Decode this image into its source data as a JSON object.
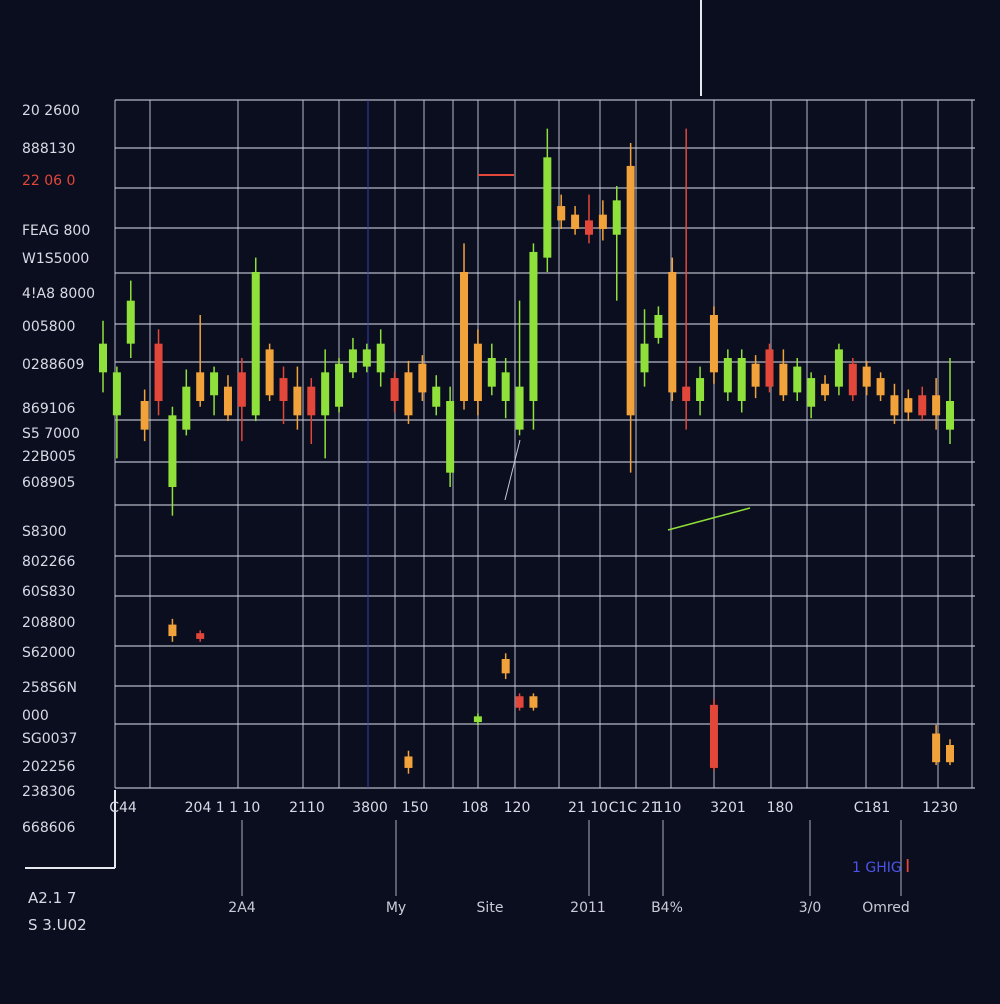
{
  "colors": {
    "background": "#0b0e1f",
    "grid": "#c8ccd8",
    "up": "#8fe03a",
    "down_orange": "#f2a23a",
    "down_red": "#e2473a",
    "accent_blue": "#4b54e6"
  },
  "corner_top": {
    "line1": "A2.1 7",
    "line2": "S 3.U02"
  },
  "badge": {
    "text": "1 GHIG",
    "mark": "I"
  },
  "chart_data": {
    "type": "candlestick",
    "grid": true,
    "y_tick_labels": [
      "20 2600",
      "888130",
      "22 06 0",
      "FEAG 800",
      "W1S5000",
      "4!A8 8000",
      "005800",
      "0288609",
      "869106",
      "S5 7000",
      "22B005",
      "608905",
      "S8300",
      "802266",
      "60S830",
      "208800",
      "S62000",
      "258S6N",
      "000",
      "SG0037",
      "202256",
      "238306",
      "668606"
    ],
    "highlighted_y_tick": "22 06 0",
    "x_tick_labels": [
      "C44",
      "204",
      "1 1 10",
      "2110",
      "3800",
      "150",
      "108",
      "120",
      "21 10",
      "C1C 21",
      "110",
      "3201",
      "180",
      "C181",
      "1230"
    ],
    "bottom_labels": [
      "2A4",
      "My",
      "Site",
      "2011",
      "B4%",
      "3/0",
      "Omred"
    ],
    "candles": [
      {
        "o": 4,
        "c": 5,
        "h": 5.8,
        "l": 3.3,
        "color": "up"
      },
      {
        "o": 4,
        "c": 2.5,
        "h": 4.2,
        "l": 1,
        "color": "up"
      },
      {
        "o": 5,
        "c": 6.5,
        "h": 7.2,
        "l": 4.5,
        "color": "up"
      },
      {
        "o": 3,
        "c": 2,
        "h": 3.4,
        "l": 1.6,
        "color": "orange"
      },
      {
        "o": 3,
        "c": 5,
        "h": 5.5,
        "l": 2.5,
        "color": "red"
      },
      {
        "o": 2.5,
        "c": 0,
        "h": 2.8,
        "l": -1,
        "color": "up"
      },
      {
        "o": 2,
        "c": 3.5,
        "h": 4.1,
        "l": 1.8,
        "color": "up"
      },
      {
        "o": 3,
        "c": 4,
        "h": 6,
        "l": 2.8,
        "color": "orange"
      },
      {
        "o": 3.2,
        "c": 4,
        "h": 4.2,
        "l": 2.5,
        "color": "up"
      },
      {
        "o": 2.5,
        "c": 3.5,
        "h": 3.9,
        "l": 2.3,
        "color": "orange"
      },
      {
        "o": 2.8,
        "c": 4,
        "h": 4.5,
        "l": 1.6,
        "color": "red"
      },
      {
        "o": 2.5,
        "c": 7.5,
        "h": 8,
        "l": 2.3,
        "color": "up"
      },
      {
        "o": 3.2,
        "c": 4.8,
        "h": 5,
        "l": 3,
        "color": "orange"
      },
      {
        "o": 3,
        "c": 3.8,
        "h": 4.2,
        "l": 2.2,
        "color": "red"
      },
      {
        "o": 3.5,
        "c": 2.5,
        "h": 4.2,
        "l": 2,
        "color": "orange"
      },
      {
        "o": 3.5,
        "c": 2.5,
        "h": 3.8,
        "l": 1.5,
        "color": "red"
      },
      {
        "o": 2.5,
        "c": 4,
        "h": 4.8,
        "l": 1,
        "color": "up"
      },
      {
        "o": 2.8,
        "c": 4.3,
        "h": 4.5,
        "l": 2.6,
        "color": "up"
      },
      {
        "o": 4,
        "c": 4.8,
        "h": 5.2,
        "l": 3.8,
        "color": "up"
      },
      {
        "o": 4.2,
        "c": 4.8,
        "h": 5,
        "l": 4,
        "color": "up"
      },
      {
        "o": 4,
        "c": 5,
        "h": 5.5,
        "l": 3.5,
        "color": "up"
      },
      {
        "o": 3.8,
        "c": 3,
        "h": 4,
        "l": 2.6,
        "color": "red"
      },
      {
        "o": 4,
        "c": 2.5,
        "h": 4.4,
        "l": 2.2,
        "color": "orange"
      },
      {
        "o": 3.3,
        "c": 4.3,
        "h": 4.6,
        "l": 3,
        "color": "orange"
      },
      {
        "o": 3.5,
        "c": 2.8,
        "h": 3.9,
        "l": 2.5,
        "color": "up"
      },
      {
        "o": 3,
        "c": 0.5,
        "h": 3.5,
        "l": 0,
        "color": "up"
      },
      {
        "o": 3,
        "c": 7.5,
        "h": 8.5,
        "l": 2.7,
        "color": "orange"
      },
      {
        "o": 3,
        "c": 5,
        "h": 5.5,
        "l": 2.5,
        "color": "orange"
      },
      {
        "o": 3.5,
        "c": 4.5,
        "h": 5,
        "l": 3.2,
        "color": "up"
      },
      {
        "o": 3,
        "c": 4,
        "h": 4.5,
        "l": 2.4,
        "color": "up"
      },
      {
        "o": 2,
        "c": 3.5,
        "h": 6.5,
        "l": 1.8,
        "color": "up"
      },
      {
        "o": 3,
        "c": 8.2,
        "h": 8.5,
        "l": 2,
        "color": "up"
      },
      {
        "o": 8,
        "c": 11.5,
        "h": 12.5,
        "l": 7.5,
        "color": "up"
      },
      {
        "o": 9.3,
        "c": 9.8,
        "h": 10.2,
        "l": 9,
        "color": "orange"
      },
      {
        "o": 9,
        "c": 9.5,
        "h": 9.8,
        "l": 8.8,
        "color": "orange"
      },
      {
        "o": 8.8,
        "c": 9.3,
        "h": 10.2,
        "l": 8.5,
        "color": "red"
      },
      {
        "o": 9.5,
        "c": 9,
        "h": 10,
        "l": 8.6,
        "color": "orange"
      },
      {
        "o": 8.8,
        "c": 10,
        "h": 10.5,
        "l": 6.5,
        "color": "up"
      },
      {
        "o": 11.2,
        "c": 2.5,
        "h": 12,
        "l": 0.5,
        "color": "orange"
      },
      {
        "o": 4,
        "c": 5,
        "h": 6.2,
        "l": 3.5,
        "color": "up"
      },
      {
        "o": 5.2,
        "c": 6,
        "h": 6.3,
        "l": 5,
        "color": "up"
      },
      {
        "o": 3.3,
        "c": 7.5,
        "h": 8,
        "l": 3,
        "color": "orange"
      },
      {
        "o": 3,
        "c": 3.5,
        "h": 12.5,
        "l": 2,
        "color": "red"
      },
      {
        "o": 3,
        "c": 3.8,
        "h": 4.2,
        "l": 2.5,
        "color": "up"
      },
      {
        "o": 4,
        "c": 6,
        "h": 6.3,
        "l": 3.6,
        "color": "orange"
      },
      {
        "o": 3.3,
        "c": 4.5,
        "h": 4.8,
        "l": 3,
        "color": "up"
      },
      {
        "o": 4.5,
        "c": 3,
        "h": 4.8,
        "l": 2.6,
        "color": "up"
      },
      {
        "o": 3.5,
        "c": 4.3,
        "h": 4.6,
        "l": 3.1,
        "color": "orange"
      },
      {
        "o": 3.5,
        "c": 4.8,
        "h": 5,
        "l": 3.3,
        "color": "red"
      },
      {
        "o": 4.3,
        "c": 3.2,
        "h": 4.8,
        "l": 3,
        "color": "orange"
      },
      {
        "o": 3.3,
        "c": 4.2,
        "h": 4.5,
        "l": 3,
        "color": "up"
      },
      {
        "o": 3.8,
        "c": 2.8,
        "h": 4,
        "l": 2.4,
        "color": "up"
      },
      {
        "o": 3.6,
        "c": 3.2,
        "h": 3.9,
        "l": 3,
        "color": "orange"
      },
      {
        "o": 3.5,
        "c": 4.8,
        "h": 5,
        "l": 3.2,
        "color": "up"
      },
      {
        "o": 3.2,
        "c": 4.3,
        "h": 4.5,
        "l": 3,
        "color": "red"
      },
      {
        "o": 4.2,
        "c": 3.5,
        "h": 4.4,
        "l": 3.2,
        "color": "orange"
      },
      {
        "o": 3.8,
        "c": 3.2,
        "h": 4,
        "l": 3,
        "color": "orange"
      },
      {
        "o": 3.2,
        "c": 2.5,
        "h": 3.6,
        "l": 2.2,
        "color": "orange"
      },
      {
        "o": 3.1,
        "c": 2.6,
        "h": 3.4,
        "l": 2.3,
        "color": "orange"
      },
      {
        "o": 3.2,
        "c": 2.5,
        "h": 3.5,
        "l": 2.3,
        "color": "red"
      },
      {
        "o": 3.2,
        "c": 2.5,
        "h": 3.8,
        "l": 2,
        "color": "orange"
      },
      {
        "o": 3,
        "c": 2,
        "h": 4.5,
        "l": 1.5,
        "color": "up"
      }
    ],
    "bottom_candles": [
      {
        "i": 5,
        "o": -5.2,
        "c": -4.8,
        "h": -4.6,
        "l": -5.4,
        "color": "orange"
      },
      {
        "i": 7,
        "o": -5.3,
        "c": -5.1,
        "h": -5,
        "l": -5.4,
        "color": "red"
      },
      {
        "i": 22,
        "o": -9.8,
        "c": -9.4,
        "h": -9.2,
        "l": -10,
        "color": "orange"
      },
      {
        "i": 27,
        "o": -8.2,
        "c": -8,
        "h": -7.9,
        "l": -8.3,
        "color": "up"
      },
      {
        "i": 29,
        "o": -6.5,
        "c": -6,
        "h": -5.8,
        "l": -6.7,
        "color": "orange"
      },
      {
        "i": 30,
        "o": -7.7,
        "c": -7.3,
        "h": -7.2,
        "l": -7.8,
        "color": "red"
      },
      {
        "i": 31,
        "o": -7.7,
        "c": -7.3,
        "h": -7.2,
        "l": -7.8,
        "color": "orange"
      },
      {
        "i": 44,
        "o": -9.8,
        "c": -7.6,
        "h": -7.4,
        "l": -9.9,
        "color": "red"
      },
      {
        "i": 60,
        "o": -9.6,
        "c": -8.6,
        "h": -8.3,
        "l": -9.7,
        "color": "orange"
      },
      {
        "i": 61,
        "o": -9.6,
        "c": -9,
        "h": -8.8,
        "l": -9.7,
        "color": "orange"
      }
    ]
  }
}
